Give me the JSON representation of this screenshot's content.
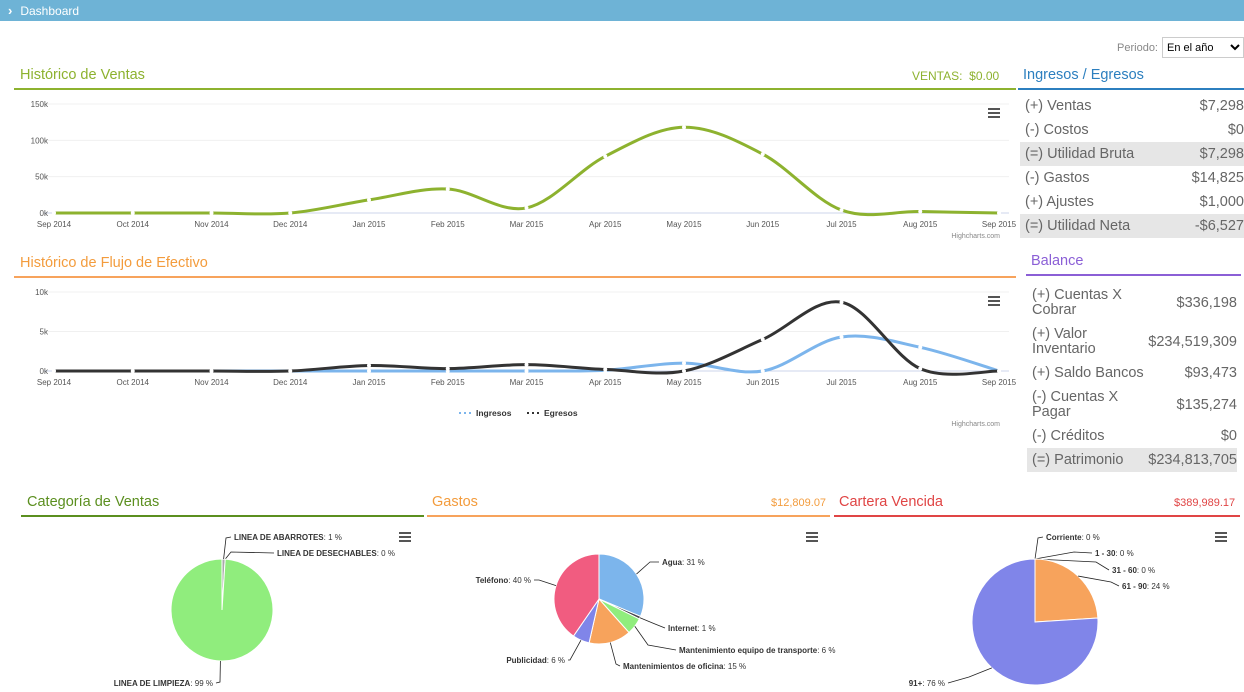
{
  "topbar": {
    "title": "Dashboard"
  },
  "periodo": {
    "label": "Periodo:",
    "value": "En el año",
    "options": [
      "En el año"
    ]
  },
  "ventas_chart": {
    "title": "Histórico de Ventas",
    "total_label": "VENTAS:",
    "total_value": "$0.00",
    "credit": "Highcharts.com",
    "chart_data": {
      "type": "line",
      "categories": [
        "Sep 2014",
        "Oct 2014",
        "Nov 2014",
        "Dec 2014",
        "Jan 2015",
        "Feb 2015",
        "Mar 2015",
        "Apr 2015",
        "May 2015",
        "Jun 2015",
        "Jul 2015",
        "Aug 2015",
        "Sep 2015"
      ],
      "y_ticks": [
        "0k",
        "50k",
        "100k",
        "150k"
      ],
      "ylim": [
        0,
        150000
      ],
      "series": [
        {
          "name": "Ventas",
          "color": "#8db22f",
          "values": [
            0,
            0,
            0,
            0,
            18000,
            33000,
            7000,
            78000,
            118000,
            81000,
            4000,
            2000,
            0
          ]
        }
      ]
    }
  },
  "flujo_chart": {
    "title": "Histórico de Flujo de Efectivo",
    "credit": "Highcharts.com",
    "chart_data": {
      "type": "line",
      "categories": [
        "Sep 2014",
        "Oct 2014",
        "Nov 2014",
        "Dec 2014",
        "Jan 2015",
        "Feb 2015",
        "Mar 2015",
        "Apr 2015",
        "May 2015",
        "Jun 2015",
        "Jul 2015",
        "Aug 2015",
        "Sep 2015"
      ],
      "y_ticks": [
        "0k",
        "5k",
        "10k"
      ],
      "ylim": [
        0,
        10000
      ],
      "series": [
        {
          "name": "Ingresos",
          "color": "#7cb5ec",
          "values": [
            0,
            0,
            0,
            0,
            0,
            0,
            0,
            100,
            1000,
            0,
            4300,
            3000,
            0
          ]
        },
        {
          "name": "Egresos",
          "color": "#333333",
          "values": [
            0,
            0,
            0,
            0,
            700,
            300,
            800,
            200,
            0,
            4000,
            8700,
            300,
            0
          ]
        }
      ]
    }
  },
  "ingresos_egresos": {
    "title": "Ingresos / Egresos",
    "rows": [
      {
        "label": "(+) Ventas",
        "value": "$7,298"
      },
      {
        "label": "(-) Costos",
        "value": "$0"
      },
      {
        "label": "(=) Utilidad Bruta",
        "value": "$7,298"
      },
      {
        "label": "(-) Gastos",
        "value": "$14,825"
      },
      {
        "label": "(+) Ajustes",
        "value": "$1,000"
      },
      {
        "label": "(=) Utilidad Neta",
        "value": "-$6,527"
      }
    ]
  },
  "balance": {
    "title": "Balance",
    "rows": [
      {
        "label1": "(+) Cuentas X",
        "label2": "Cobrar",
        "value": "$336,198"
      },
      {
        "label1": "(+) Valor",
        "label2": "Inventario",
        "value": "$234,519,309"
      },
      {
        "label1": "(+) Saldo Bancos",
        "label2": "",
        "value": "$93,473"
      },
      {
        "label1": "(-) Cuentas X",
        "label2": "Pagar",
        "value": "$135,274"
      },
      {
        "label1": "(-) Créditos",
        "label2": "",
        "value": "$0"
      },
      {
        "label1": "(=) Patrimonio",
        "label2": "",
        "value": "$234,813,705"
      }
    ]
  },
  "categoria_ventas": {
    "title": "Categoría de Ventas",
    "chart_data": {
      "type": "pie",
      "slices": [
        {
          "name": "LINEA DE ABARROTES",
          "pct": "1 %",
          "value": 1,
          "color": "#aaaaaa"
        },
        {
          "name": "LINEA DE DESECHABLES",
          "pct": "0 %",
          "value": 0,
          "color": "#f7a35c"
        },
        {
          "name": "LINEA DE LIMPIEZA",
          "pct": "99 %",
          "value": 99,
          "color": "#90ed7d"
        }
      ]
    }
  },
  "gastos": {
    "title": "Gastos",
    "total": "$12,809.07",
    "chart_data": {
      "type": "pie",
      "slices": [
        {
          "name": "Agua",
          "pct": "31 %",
          "value": 31,
          "color": "#7cb5ec"
        },
        {
          "name": "Internet",
          "pct": "1 %",
          "value": 1,
          "color": "#434348"
        },
        {
          "name": "Mantenimiento equipo de transporte",
          "pct": "6 %",
          "value": 6,
          "color": "#90ed7d"
        },
        {
          "name": "Mantenimientos de oficina",
          "pct": "15 %",
          "value": 15,
          "color": "#f7a35c"
        },
        {
          "name": "Publicidad",
          "pct": "6 %",
          "value": 6,
          "color": "#8085e9"
        },
        {
          "name": "Teléfono",
          "pct": "40 %",
          "value": 40,
          "color": "#f15c80"
        }
      ]
    }
  },
  "cartera": {
    "title": "Cartera Vencida",
    "total": "$389,989.17",
    "chart_data": {
      "type": "pie",
      "slices": [
        {
          "name": "Corriente",
          "pct": "0 %",
          "value": 0,
          "color": "#7cb5ec"
        },
        {
          "name": "1 - 30",
          "pct": "0 %",
          "value": 0,
          "color": "#434348"
        },
        {
          "name": "31 - 60",
          "pct": "0 %",
          "value": 0,
          "color": "#90ed7d"
        },
        {
          "name": "61 - 90",
          "pct": "24 %",
          "value": 24,
          "color": "#f7a35c"
        },
        {
          "name": "91+",
          "pct": "76 %",
          "value": 76,
          "color": "#8085e9"
        }
      ]
    }
  },
  "colors": {
    "green": "#8db22f",
    "orange": "#f7a35c",
    "blue": "#2c7fbf",
    "purple": "#8b5fd6",
    "red": "#e04545"
  }
}
